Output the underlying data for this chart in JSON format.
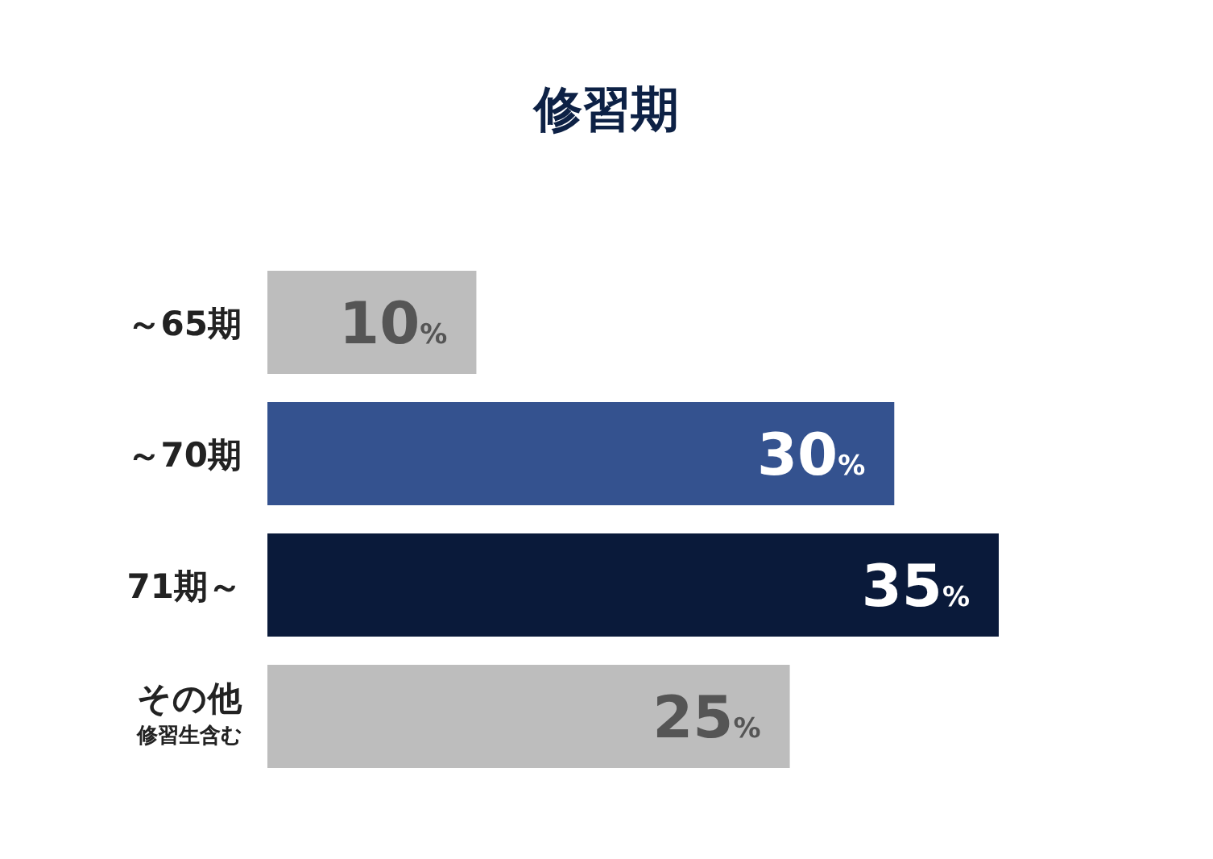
{
  "chart_data": {
    "type": "bar",
    "orientation": "horizontal",
    "title": "修習期",
    "categories": [
      "～65期",
      "～70期",
      "71期～",
      "その他"
    ],
    "values": [
      10,
      30,
      35,
      25
    ],
    "colors": [
      "#bdbdbd",
      "#34528f",
      "#0a1a3a",
      "#bdbdbd"
    ],
    "value_labels": [
      "10%",
      "30%",
      "35%",
      "25%"
    ],
    "annotations": [
      "修習生含む"
    ]
  }
}
